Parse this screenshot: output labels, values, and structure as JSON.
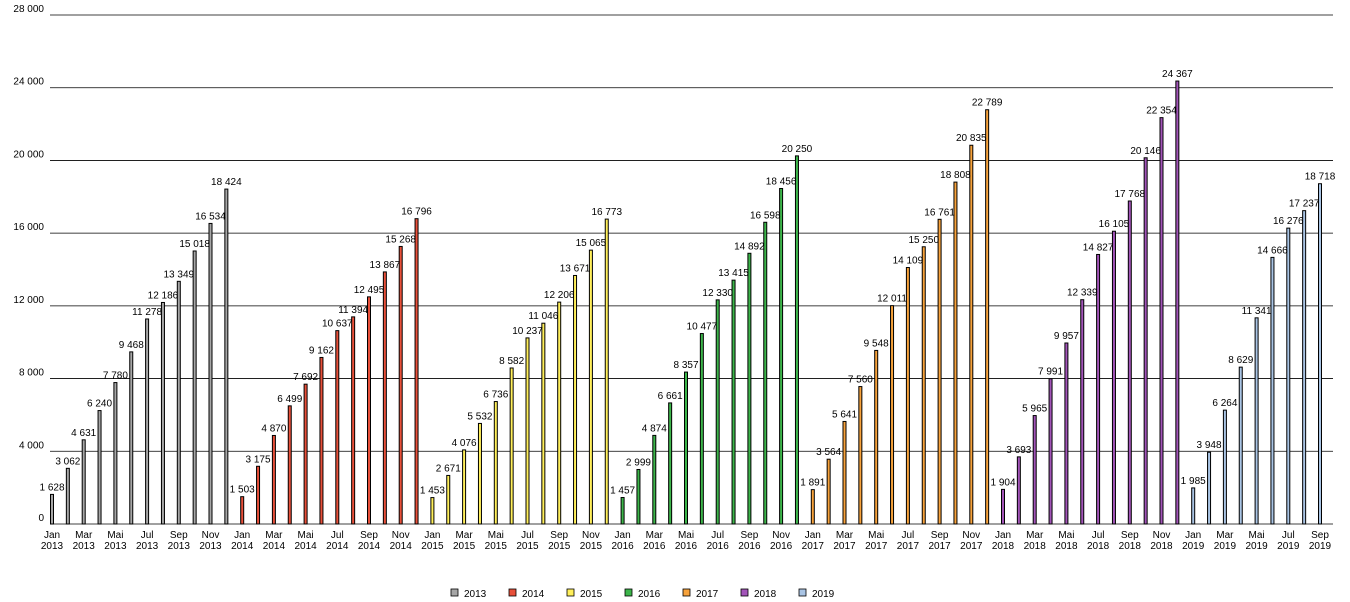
{
  "chart_data": {
    "type": "bar",
    "ylim": [
      0,
      28000
    ],
    "yticks": [
      0,
      4000,
      8000,
      12000,
      16000,
      20000,
      24000,
      28000
    ],
    "ytick_labels": [
      "0",
      "4 000",
      "8 000",
      "12 000",
      "16 000",
      "20 000",
      "24 000",
      "28 000"
    ],
    "grid": true,
    "legend_position": "bottom",
    "series": [
      {
        "name": "2013",
        "color": "#a6a6a6",
        "values": [
          1628,
          3062,
          4631,
          6240,
          7780,
          9468,
          11278,
          12186,
          13349,
          15018,
          16534,
          18424
        ],
        "labels": [
          "1 628",
          "3 062",
          "4 631",
          "6 240",
          "7 780",
          "9 468",
          "11 278",
          "12 186",
          "13 349",
          "15 018",
          "16 534",
          "18 424"
        ]
      },
      {
        "name": "2014",
        "color": "#e8503a",
        "values": [
          1503,
          3175,
          4870,
          6499,
          7692,
          9162,
          10637,
          11394,
          12495,
          13867,
          15268,
          16796
        ],
        "labels": [
          "1 503",
          "3 175",
          "4 870",
          "6 499",
          "7 692",
          "9 162",
          "10 637",
          "11 394",
          "12 495",
          "13 867",
          "15 268",
          "16 796"
        ]
      },
      {
        "name": "2015",
        "color": "#ffef5a",
        "values": [
          1453,
          2671,
          4076,
          5532,
          6736,
          8582,
          10237,
          11046,
          12206,
          13671,
          15065,
          16773
        ],
        "labels": [
          "1 453",
          "2 671",
          "4 076",
          "5 532",
          "6 736",
          "8 582",
          "10 237",
          "11 046",
          "12 206",
          "13 671",
          "15 065",
          "16 773"
        ]
      },
      {
        "name": "2016",
        "color": "#3cb54a",
        "values": [
          1457,
          2999,
          4874,
          6661,
          8357,
          10477,
          12330,
          13415,
          14892,
          16598,
          18456,
          20250
        ],
        "labels": [
          "1 457",
          "2 999",
          "4 874",
          "6 661",
          "8 357",
          "10 477",
          "12 330",
          "13 415",
          "14 892",
          "16 598",
          "18 456",
          "20 250"
        ]
      },
      {
        "name": "2017",
        "color": "#f7a23b",
        "values": [
          1891,
          3564,
          5641,
          7560,
          9548,
          12011,
          14109,
          15250,
          16761,
          18808,
          20835,
          22789
        ],
        "labels": [
          "1 891",
          "3 564",
          "5 641",
          "7 560",
          "9 548",
          "12 011",
          "14 109",
          "15 250",
          "16 761",
          "18 808",
          "20 835",
          "22 789"
        ]
      },
      {
        "name": "2018",
        "color": "#a254b8",
        "values": [
          1904,
          3693,
          5965,
          7991,
          9957,
          12339,
          14827,
          16105,
          17768,
          20146,
          22354,
          24367
        ],
        "labels": [
          "1 904",
          "3 693",
          "5 965",
          "7 991",
          "9 957",
          "12 339",
          "14 827",
          "16 105",
          "17 768",
          "20 146",
          "22 354",
          "24 367"
        ]
      },
      {
        "name": "2019",
        "color": "#a9c4e4",
        "values": [
          1985,
          3948,
          6264,
          8629,
          11341,
          14666,
          16276,
          17237,
          18718
        ],
        "labels": [
          "1 985",
          "3 948",
          "6 264",
          "8 629",
          "11 341",
          "14 666",
          "16 276",
          "17 237",
          "18 718"
        ]
      }
    ],
    "xtick_labels": [
      [
        "Jan",
        "2013"
      ],
      [
        "Mar",
        "2013"
      ],
      [
        "Mai",
        "2013"
      ],
      [
        "Jul",
        "2013"
      ],
      [
        "Sep",
        "2013"
      ],
      [
        "Nov",
        "2013"
      ],
      [
        "Jan",
        "2014"
      ],
      [
        "Mar",
        "2014"
      ],
      [
        "Mai",
        "2014"
      ],
      [
        "Jul",
        "2014"
      ],
      [
        "Sep",
        "2014"
      ],
      [
        "Nov",
        "2014"
      ],
      [
        "Jan",
        "2015"
      ],
      [
        "Mar",
        "2015"
      ],
      [
        "Mai",
        "2015"
      ],
      [
        "Jul",
        "2015"
      ],
      [
        "Sep",
        "2015"
      ],
      [
        "Nov",
        "2015"
      ],
      [
        "Jan",
        "2016"
      ],
      [
        "Mar",
        "2016"
      ],
      [
        "Mai",
        "2016"
      ],
      [
        "Jul",
        "2016"
      ],
      [
        "Sep",
        "2016"
      ],
      [
        "Nov",
        "2016"
      ],
      [
        "Jan",
        "2017"
      ],
      [
        "Mar",
        "2017"
      ],
      [
        "Mai",
        "2017"
      ],
      [
        "Jul",
        "2017"
      ],
      [
        "Sep",
        "2017"
      ],
      [
        "Nov",
        "2017"
      ],
      [
        "Jan",
        "2018"
      ],
      [
        "Mar",
        "2018"
      ],
      [
        "Mai",
        "2018"
      ],
      [
        "Jul",
        "2018"
      ],
      [
        "Sep",
        "2018"
      ],
      [
        "Nov",
        "2018"
      ],
      [
        "Jan",
        "2019"
      ],
      [
        "Mar",
        "2019"
      ],
      [
        "Mai",
        "2019"
      ],
      [
        "Jul",
        "2019"
      ],
      [
        "Sep",
        "2019"
      ]
    ]
  }
}
